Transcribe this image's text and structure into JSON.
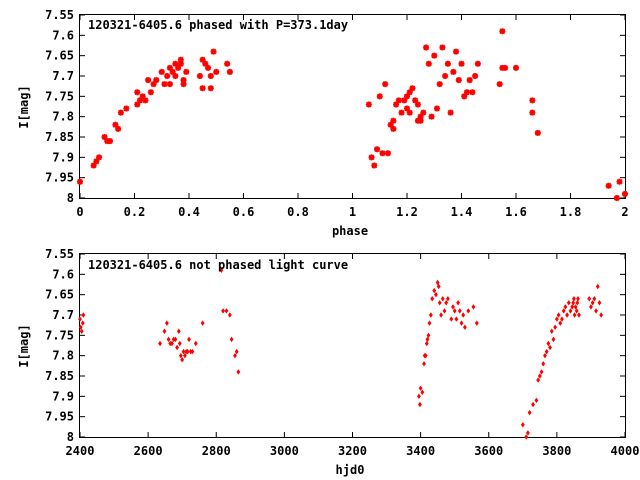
{
  "chart_data": [
    {
      "type": "scatter",
      "title": "120321-6405.6 phased with P=373.1day",
      "xlabel": "phase",
      "ylabel": "I[mag]",
      "xlim": [
        0,
        2
      ],
      "ylim": [
        8,
        7.55
      ],
      "y_inverted": true,
      "xticks": [
        0,
        0.2,
        0.4,
        0.6,
        0.8,
        1,
        1.2,
        1.4,
        1.6,
        1.8,
        2
      ],
      "xtick_labels": [
        "0",
        "0.2",
        "0.4",
        "0.6",
        "0.8",
        "1",
        "1.2",
        "1.4",
        "1.6",
        "1.8",
        "2"
      ],
      "yticks": [
        7.55,
        7.6,
        7.65,
        7.7,
        7.75,
        7.8,
        7.85,
        7.9,
        7.95,
        8
      ],
      "ytick_labels": [
        "7.55",
        "7.6",
        "7.65",
        "7.7",
        "7.75",
        "7.8",
        "7.85",
        "7.9",
        "7.95",
        "8"
      ],
      "marker_color": "#ff0000",
      "marker": "star",
      "grid": false,
      "x": [
        0.0,
        0.05,
        0.06,
        0.07,
        0.09,
        0.1,
        0.11,
        0.13,
        0.14,
        0.15,
        0.17,
        0.21,
        0.21,
        0.22,
        0.23,
        0.24,
        0.25,
        0.26,
        0.27,
        0.28,
        0.3,
        0.31,
        0.32,
        0.33,
        0.33,
        0.34,
        0.35,
        0.35,
        0.36,
        0.37,
        0.37,
        0.38,
        0.38,
        0.39,
        0.44,
        0.45,
        0.45,
        0.46,
        0.47,
        0.48,
        0.48,
        0.49,
        0.5,
        0.54,
        0.55,
        1.06,
        1.07,
        1.08,
        1.09,
        1.1,
        1.11,
        1.12,
        1.13,
        1.14,
        1.15,
        1.15,
        1.16,
        1.17,
        1.18,
        1.19,
        1.2,
        1.2,
        1.21,
        1.21,
        1.22,
        1.23,
        1.24,
        1.24,
        1.25,
        1.25,
        1.26,
        1.27,
        1.28,
        1.29,
        1.3,
        1.31,
        1.32,
        1.33,
        1.34,
        1.35,
        1.36,
        1.37,
        1.38,
        1.39,
        1.4,
        1.41,
        1.42,
        1.43,
        1.44,
        1.45,
        1.46,
        1.54,
        1.55,
        1.55,
        1.56,
        1.6,
        1.66,
        1.66,
        1.68,
        1.94,
        1.97,
        1.98,
        2.0
      ],
      "y": [
        7.96,
        7.92,
        7.91,
        7.9,
        7.85,
        7.86,
        7.86,
        7.82,
        7.83,
        7.79,
        7.78,
        7.74,
        7.77,
        7.76,
        7.75,
        7.76,
        7.71,
        7.74,
        7.72,
        7.71,
        7.69,
        7.72,
        7.7,
        7.68,
        7.72,
        7.69,
        7.67,
        7.7,
        7.68,
        7.66,
        7.67,
        7.71,
        7.72,
        7.69,
        7.7,
        7.73,
        7.66,
        7.67,
        7.68,
        7.7,
        7.73,
        7.64,
        7.69,
        7.67,
        7.69,
        7.77,
        7.9,
        7.92,
        7.88,
        7.75,
        7.89,
        7.72,
        7.89,
        7.82,
        7.83,
        7.81,
        7.77,
        7.76,
        7.79,
        7.76,
        7.78,
        7.75,
        7.74,
        7.79,
        7.73,
        7.76,
        7.77,
        7.81,
        7.8,
        7.81,
        7.79,
        7.63,
        7.67,
        7.8,
        7.65,
        7.78,
        7.72,
        7.63,
        7.7,
        7.67,
        7.79,
        7.69,
        7.64,
        7.71,
        7.67,
        7.75,
        7.74,
        7.71,
        7.74,
        7.7,
        7.67,
        7.72,
        7.59,
        7.68,
        7.68,
        7.68,
        7.76,
        7.79,
        7.84,
        7.97,
        8.0,
        7.96,
        7.99
      ]
    },
    {
      "type": "scatter",
      "title": "120321-6405.6 not phased light curve",
      "xlabel": "hjd0",
      "ylabel": "I[mag]",
      "xlim": [
        2400,
        4000
      ],
      "ylim": [
        8,
        7.55
      ],
      "y_inverted": true,
      "xticks": [
        2400,
        2600,
        2800,
        3000,
        3200,
        3400,
        3600,
        3800,
        4000
      ],
      "xtick_labels": [
        "2400",
        "2600",
        "2800",
        "3000",
        "3200",
        "3400",
        "3600",
        "3800",
        "4000"
      ],
      "yticks": [
        7.55,
        7.6,
        7.65,
        7.7,
        7.75,
        7.8,
        7.85,
        7.9,
        7.95,
        8
      ],
      "ytick_labels": [
        "7.55",
        "7.6",
        "7.65",
        "7.7",
        "7.75",
        "7.8",
        "7.85",
        "7.9",
        "7.95",
        "8"
      ],
      "marker_color": "#ff0000",
      "marker": "diamond",
      "grid": false,
      "x": [
        2400,
        2402,
        2405,
        2408,
        2410,
        2635,
        2648,
        2655,
        2660,
        2665,
        2670,
        2675,
        2680,
        2685,
        2690,
        2693,
        2696,
        2700,
        2704,
        2708,
        2712,
        2716,
        2720,
        2725,
        2730,
        2740,
        2760,
        2815,
        2820,
        2830,
        2840,
        2845,
        2855,
        2860,
        2865,
        3395,
        3398,
        3400,
        3405,
        3410,
        3412,
        3415,
        3418,
        3420,
        3423,
        3426,
        3430,
        3434,
        3440,
        3445,
        3450,
        3453,
        3456,
        3460,
        3465,
        3470,
        3475,
        3480,
        3490,
        3495,
        3500,
        3505,
        3510,
        3515,
        3520,
        3525,
        3530,
        3540,
        3555,
        3565,
        3700,
        3710,
        3715,
        3720,
        3730,
        3740,
        3745,
        3750,
        3755,
        3760,
        3765,
        3770,
        3775,
        3780,
        3785,
        3790,
        3795,
        3800,
        3805,
        3810,
        3815,
        3820,
        3825,
        3830,
        3835,
        3840,
        3845,
        3848,
        3850,
        3852,
        3855,
        3858,
        3860,
        3862,
        3865,
        3895,
        3900,
        3905,
        3910,
        3915,
        3920,
        3925,
        3930
      ],
      "y": [
        7.71,
        7.73,
        7.74,
        7.72,
        7.7,
        7.77,
        7.74,
        7.72,
        7.76,
        7.77,
        7.77,
        7.76,
        7.76,
        7.78,
        7.74,
        7.77,
        7.8,
        7.81,
        7.79,
        7.8,
        7.79,
        7.79,
        7.76,
        7.79,
        7.79,
        7.77,
        7.72,
        7.59,
        7.69,
        7.69,
        7.7,
        7.76,
        7.8,
        7.79,
        7.84,
        7.9,
        7.92,
        7.88,
        7.89,
        7.82,
        7.8,
        7.8,
        7.77,
        7.76,
        7.75,
        7.72,
        7.7,
        7.66,
        7.64,
        7.65,
        7.62,
        7.63,
        7.67,
        7.7,
        7.66,
        7.69,
        7.67,
        7.66,
        7.71,
        7.68,
        7.69,
        7.71,
        7.67,
        7.69,
        7.72,
        7.7,
        7.73,
        7.69,
        7.68,
        7.72,
        7.97,
        8.0,
        7.99,
        7.94,
        7.92,
        7.91,
        7.86,
        7.85,
        7.84,
        7.82,
        7.8,
        7.79,
        7.77,
        7.78,
        7.74,
        7.76,
        7.73,
        7.71,
        7.7,
        7.72,
        7.71,
        7.69,
        7.68,
        7.7,
        7.67,
        7.69,
        7.68,
        7.67,
        7.66,
        7.7,
        7.68,
        7.69,
        7.67,
        7.66,
        7.7,
        7.66,
        7.68,
        7.67,
        7.66,
        7.69,
        7.63,
        7.67,
        7.7
      ]
    }
  ]
}
